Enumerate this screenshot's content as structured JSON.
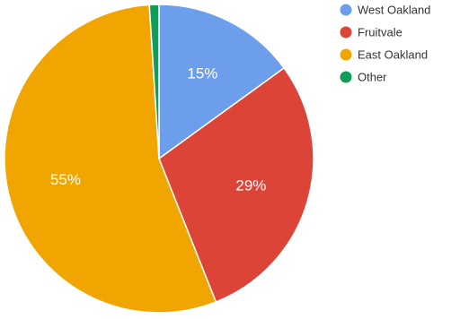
{
  "chart_data": {
    "type": "pie",
    "title": "",
    "start_angle_deg": 0,
    "direction": "clockwise",
    "legend_position": "top-right",
    "slices": [
      {
        "name": "West Oakland",
        "value": 15,
        "label": "15%",
        "color": "#6d9eeb"
      },
      {
        "name": "Fruitvale",
        "value": 29,
        "label": "29%",
        "color": "#dc4437"
      },
      {
        "name": "East Oakland",
        "value": 55,
        "label": "55%",
        "color": "#f1a500"
      },
      {
        "name": "Other",
        "value": 1,
        "label": "",
        "color": "#109d58"
      }
    ]
  }
}
